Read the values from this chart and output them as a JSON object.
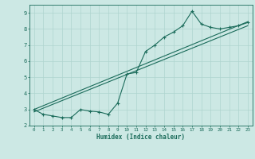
{
  "xlabel": "Humidex (Indice chaleur)",
  "bg_color": "#cce8e4",
  "grid_color": "#afd4cf",
  "line_color": "#1a6b5a",
  "xlim": [
    -0.5,
    23.5
  ],
  "ylim": [
    2,
    9.5
  ],
  "xticks": [
    0,
    1,
    2,
    3,
    4,
    5,
    6,
    7,
    8,
    9,
    10,
    11,
    12,
    13,
    14,
    15,
    16,
    17,
    18,
    19,
    20,
    21,
    22,
    23
  ],
  "yticks": [
    2,
    3,
    4,
    5,
    6,
    7,
    8,
    9
  ],
  "line1_x": [
    0,
    1,
    2,
    3,
    4,
    5,
    6,
    7,
    8,
    9,
    10,
    11,
    12,
    13,
    14,
    15,
    16,
    17,
    18,
    19,
    20,
    21,
    22,
    23
  ],
  "line1_y": [
    3.0,
    2.7,
    2.6,
    2.5,
    2.5,
    3.0,
    2.9,
    2.85,
    2.7,
    3.4,
    5.2,
    5.3,
    6.6,
    7.0,
    7.5,
    7.8,
    8.2,
    9.1,
    8.3,
    8.1,
    8.0,
    8.1,
    8.2,
    8.4
  ],
  "line2_x": [
    0,
    23
  ],
  "line2_y": [
    3.0,
    8.45
  ],
  "line3_x": [
    0,
    23
  ],
  "line3_y": [
    2.85,
    8.2
  ]
}
